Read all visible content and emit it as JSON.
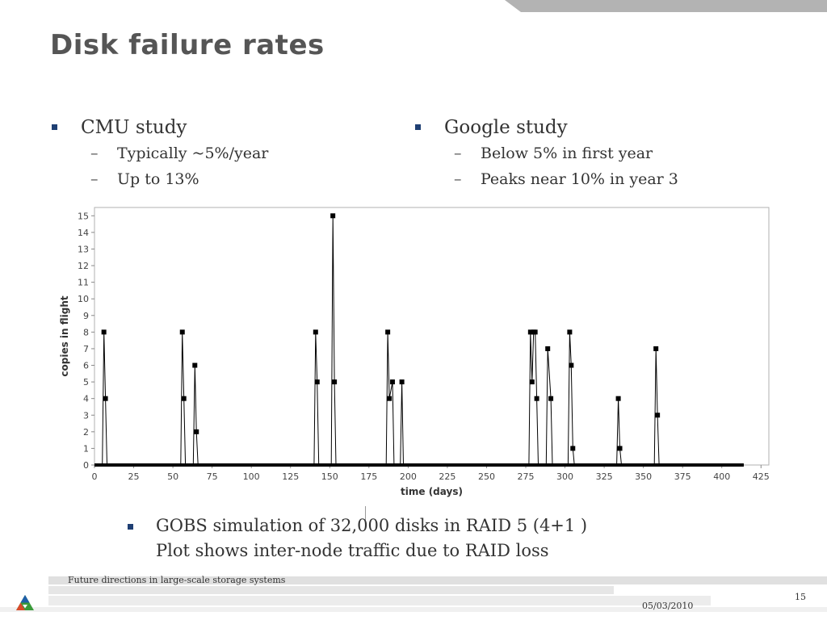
{
  "slide": {
    "title": "Disk failure rates",
    "footer_text": "Future directions in large-scale storage systems",
    "page_number": "15",
    "date": "05/03/2010"
  },
  "left_column": {
    "heading": "CMU study",
    "items": [
      "Typically ~5%/year",
      "Up to 13%"
    ]
  },
  "right_column": {
    "heading": "Google study",
    "items": [
      "Below 5% in first year",
      "Peaks near 10% in year 3"
    ]
  },
  "bottom": {
    "line1": "GOBS simulation of 32,000 disks in RAID 5 (4+1 )",
    "line2": "Plot shows inter-node traffic due to RAID loss"
  },
  "colors": {
    "bullet": "#1f3f73",
    "title": "#555555",
    "text": "#333333",
    "band": "#b3b3b3"
  },
  "chart_data": {
    "type": "line",
    "title": "",
    "xlabel": "time (days)",
    "ylabel": "copies in flight",
    "xlim": [
      0,
      430
    ],
    "ylim": [
      0,
      15.5
    ],
    "xticks": [
      0,
      25,
      50,
      75,
      100,
      125,
      150,
      175,
      200,
      225,
      250,
      275,
      300,
      325,
      350,
      375,
      400,
      425
    ],
    "yticks": [
      0,
      1,
      2,
      3,
      4,
      5,
      6,
      7,
      8,
      9,
      10,
      11,
      12,
      13,
      14,
      15
    ],
    "baseline_x_end": 414,
    "series": [
      {
        "name": "copies in flight",
        "points": [
          [
            5,
            0
          ],
          [
            6,
            8
          ],
          [
            7,
            4
          ],
          [
            8,
            0
          ],
          [
            55,
            0
          ],
          [
            56,
            8
          ],
          [
            57,
            4
          ],
          [
            58,
            0
          ],
          [
            63,
            0
          ],
          [
            64,
            6
          ],
          [
            65,
            2
          ],
          [
            66,
            0
          ],
          [
            140,
            0
          ],
          [
            141,
            8
          ],
          [
            142,
            5
          ],
          [
            143,
            0
          ],
          [
            151,
            0
          ],
          [
            152,
            15
          ],
          [
            153,
            5
          ],
          [
            154,
            0
          ],
          [
            186,
            0
          ],
          [
            187,
            8
          ],
          [
            188,
            4
          ],
          [
            190,
            5
          ],
          [
            191,
            0
          ],
          [
            195,
            0
          ],
          [
            196,
            5
          ],
          [
            197,
            0
          ],
          [
            277,
            0
          ],
          [
            278,
            8
          ],
          [
            279,
            5
          ],
          [
            280,
            8
          ],
          [
            281,
            8
          ],
          [
            282,
            4
          ],
          [
            283,
            0
          ],
          [
            288,
            0
          ],
          [
            289,
            7
          ],
          [
            291,
            4
          ],
          [
            292,
            0
          ],
          [
            302,
            0
          ],
          [
            303,
            8
          ],
          [
            304,
            6
          ],
          [
            305,
            1
          ],
          [
            306,
            0
          ],
          [
            333,
            0
          ],
          [
            334,
            4
          ],
          [
            335,
            1
          ],
          [
            336,
            0
          ],
          [
            357,
            0
          ],
          [
            358,
            7
          ],
          [
            359,
            3
          ],
          [
            360,
            0
          ]
        ]
      }
    ]
  }
}
